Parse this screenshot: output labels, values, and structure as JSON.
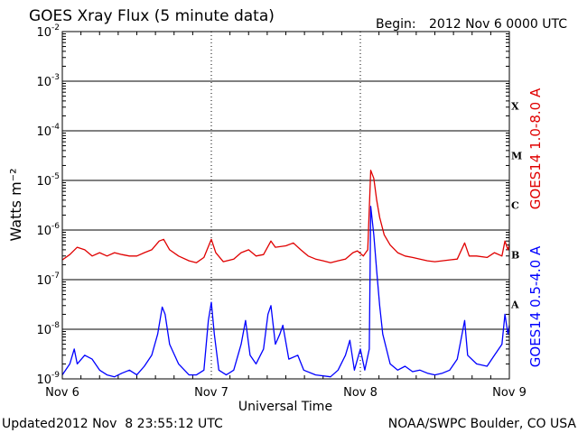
{
  "header": {
    "title": "GOES Xray Flux (5 minute data)",
    "begin_label": "Begin:",
    "begin_date": "2012 Nov 6 0000 UTC"
  },
  "footer": {
    "updated_label": "Updated",
    "updated_time": "2012 Nov  8 23:55:12 UTC",
    "source": "NOAA/SWPC Boulder, CO USA"
  },
  "colors": {
    "long_channel": "#e00000",
    "short_channel": "#0000ff",
    "frame": "#000000"
  },
  "chart_data": {
    "type": "line",
    "title": "GOES Xray Flux (5 minute data)",
    "xlabel": "Universal Time",
    "ylabel": "Watts m⁻²",
    "y_scale": "log",
    "ylim": [
      1e-09,
      0.01
    ],
    "y_ticks": [
      {
        "base": "10",
        "exp": "-9",
        "value": 1e-09
      },
      {
        "base": "10",
        "exp": "-8",
        "value": 1e-08
      },
      {
        "base": "10",
        "exp": "-7",
        "value": 1e-07
      },
      {
        "base": "10",
        "exp": "-6",
        "value": 1e-06
      },
      {
        "base": "10",
        "exp": "-5",
        "value": 1e-05
      },
      {
        "base": "10",
        "exp": "-4",
        "value": 0.0001
      },
      {
        "base": "10",
        "exp": "-3",
        "value": 0.001
      },
      {
        "base": "10",
        "exp": "-2",
        "value": 0.01
      }
    ],
    "x_unit": "days since 2012 Nov 6 0000 UTC",
    "xlim": [
      0,
      3
    ],
    "x_ticks": [
      {
        "label": "Nov 6",
        "value": 0
      },
      {
        "label": "Nov 7",
        "value": 1
      },
      {
        "label": "Nov 8",
        "value": 2
      },
      {
        "label": "Nov 9",
        "value": 3
      }
    ],
    "flare_classes": [
      {
        "label": "A",
        "value": 1e-08
      },
      {
        "label": "B",
        "value": 1e-07
      },
      {
        "label": "C",
        "value": 1e-06
      },
      {
        "label": "M",
        "value": 1e-05
      },
      {
        "label": "X",
        "value": 0.0001
      }
    ],
    "grid": "horizontal lines at each decade",
    "series": [
      {
        "name": "GOES14 1.0-8.0 A",
        "color": "#e00000",
        "points": [
          [
            0.0,
            2.5e-07
          ],
          [
            0.05,
            3.2e-07
          ],
          [
            0.1,
            4.5e-07
          ],
          [
            0.15,
            4e-07
          ],
          [
            0.2,
            3e-07
          ],
          [
            0.25,
            3.5e-07
          ],
          [
            0.3,
            3e-07
          ],
          [
            0.35,
            3.5e-07
          ],
          [
            0.4,
            3.2e-07
          ],
          [
            0.45,
            3e-07
          ],
          [
            0.5,
            3e-07
          ],
          [
            0.55,
            3.5e-07
          ],
          [
            0.6,
            4e-07
          ],
          [
            0.65,
            6e-07
          ],
          [
            0.68,
            6.5e-07
          ],
          [
            0.72,
            4e-07
          ],
          [
            0.78,
            3e-07
          ],
          [
            0.85,
            2.4e-07
          ],
          [
            0.9,
            2.2e-07
          ],
          [
            0.95,
            2.8e-07
          ],
          [
            1.0,
            6.5e-07
          ],
          [
            1.03,
            3.5e-07
          ],
          [
            1.08,
            2.3e-07
          ],
          [
            1.15,
            2.6e-07
          ],
          [
            1.2,
            3.5e-07
          ],
          [
            1.25,
            4e-07
          ],
          [
            1.3,
            3e-07
          ],
          [
            1.35,
            3.2e-07
          ],
          [
            1.4,
            6e-07
          ],
          [
            1.43,
            4.5e-07
          ],
          [
            1.5,
            4.8e-07
          ],
          [
            1.55,
            5.5e-07
          ],
          [
            1.6,
            4e-07
          ],
          [
            1.65,
            3e-07
          ],
          [
            1.7,
            2.6e-07
          ],
          [
            1.75,
            2.4e-07
          ],
          [
            1.8,
            2.2e-07
          ],
          [
            1.85,
            2.4e-07
          ],
          [
            1.9,
            2.6e-07
          ],
          [
            1.95,
            3.5e-07
          ],
          [
            1.98,
            3.8e-07
          ],
          [
            2.02,
            3e-07
          ],
          [
            2.05,
            4e-07
          ],
          [
            2.07,
            1.6e-05
          ],
          [
            2.09,
            1.1e-05
          ],
          [
            2.11,
            4e-06
          ],
          [
            2.13,
            1.8e-06
          ],
          [
            2.16,
            8e-07
          ],
          [
            2.2,
            5e-07
          ],
          [
            2.25,
            3.5e-07
          ],
          [
            2.3,
            3e-07
          ],
          [
            2.35,
            2.8e-07
          ],
          [
            2.4,
            2.6e-07
          ],
          [
            2.45,
            2.4e-07
          ],
          [
            2.5,
            2.3e-07
          ],
          [
            2.55,
            2.4e-07
          ],
          [
            2.6,
            2.5e-07
          ],
          [
            2.65,
            2.6e-07
          ],
          [
            2.7,
            5.5e-07
          ],
          [
            2.73,
            3e-07
          ],
          [
            2.78,
            3e-07
          ],
          [
            2.85,
            2.8e-07
          ],
          [
            2.9,
            3.5e-07
          ],
          [
            2.95,
            3e-07
          ],
          [
            2.97,
            6e-07
          ],
          [
            2.99,
            4e-07
          ],
          [
            3.0,
            5e-07
          ]
        ]
      },
      {
        "name": "GOES14 0.5-4.0 A",
        "color": "#0000ff",
        "points": [
          [
            0.0,
            1.2e-09
          ],
          [
            0.05,
            2e-09
          ],
          [
            0.08,
            4e-09
          ],
          [
            0.1,
            2e-09
          ],
          [
            0.15,
            3e-09
          ],
          [
            0.2,
            2.5e-09
          ],
          [
            0.25,
            1.5e-09
          ],
          [
            0.3,
            1.2e-09
          ],
          [
            0.35,
            1.1e-09
          ],
          [
            0.4,
            1.3e-09
          ],
          [
            0.45,
            1.5e-09
          ],
          [
            0.5,
            1.2e-09
          ],
          [
            0.55,
            1.8e-09
          ],
          [
            0.6,
            3e-09
          ],
          [
            0.64,
            8e-09
          ],
          [
            0.67,
            2.8e-08
          ],
          [
            0.69,
            2e-08
          ],
          [
            0.72,
            5e-09
          ],
          [
            0.78,
            2e-09
          ],
          [
            0.85,
            1.2e-09
          ],
          [
            0.9,
            1.2e-09
          ],
          [
            0.95,
            1.5e-09
          ],
          [
            0.98,
            1.5e-08
          ],
          [
            1.0,
            3.5e-08
          ],
          [
            1.02,
            8e-09
          ],
          [
            1.05,
            1.5e-09
          ],
          [
            1.1,
            1.2e-09
          ],
          [
            1.15,
            1.5e-09
          ],
          [
            1.2,
            5e-09
          ],
          [
            1.23,
            1.5e-08
          ],
          [
            1.26,
            3e-09
          ],
          [
            1.3,
            2e-09
          ],
          [
            1.35,
            4e-09
          ],
          [
            1.38,
            2e-08
          ],
          [
            1.4,
            3e-08
          ],
          [
            1.43,
            5e-09
          ],
          [
            1.46,
            8e-09
          ],
          [
            1.48,
            1.2e-08
          ],
          [
            1.52,
            2.5e-09
          ],
          [
            1.58,
            3e-09
          ],
          [
            1.62,
            1.5e-09
          ],
          [
            1.7,
            1.2e-09
          ],
          [
            1.8,
            1.1e-09
          ],
          [
            1.85,
            1.5e-09
          ],
          [
            1.9,
            3e-09
          ],
          [
            1.93,
            6e-09
          ],
          [
            1.96,
            1.5e-09
          ],
          [
            2.0,
            4e-09
          ],
          [
            2.03,
            1.5e-09
          ],
          [
            2.06,
            4e-09
          ],
          [
            2.07,
            3e-06
          ],
          [
            2.09,
            8e-07
          ],
          [
            2.11,
            1.5e-07
          ],
          [
            2.13,
            3e-08
          ],
          [
            2.15,
            8e-09
          ],
          [
            2.2,
            2e-09
          ],
          [
            2.25,
            1.5e-09
          ],
          [
            2.3,
            1.8e-09
          ],
          [
            2.35,
            1.4e-09
          ],
          [
            2.4,
            1.5e-09
          ],
          [
            2.45,
            1.3e-09
          ],
          [
            2.5,
            1.2e-09
          ],
          [
            2.55,
            1.3e-09
          ],
          [
            2.6,
            1.5e-09
          ],
          [
            2.65,
            2.5e-09
          ],
          [
            2.7,
            1.5e-08
          ],
          [
            2.72,
            3e-09
          ],
          [
            2.78,
            2e-09
          ],
          [
            2.85,
            1.8e-09
          ],
          [
            2.9,
            3e-09
          ],
          [
            2.95,
            5e-09
          ],
          [
            2.97,
            2e-08
          ],
          [
            2.99,
            8e-09
          ],
          [
            3.0,
            1.2e-08
          ]
        ]
      }
    ]
  }
}
